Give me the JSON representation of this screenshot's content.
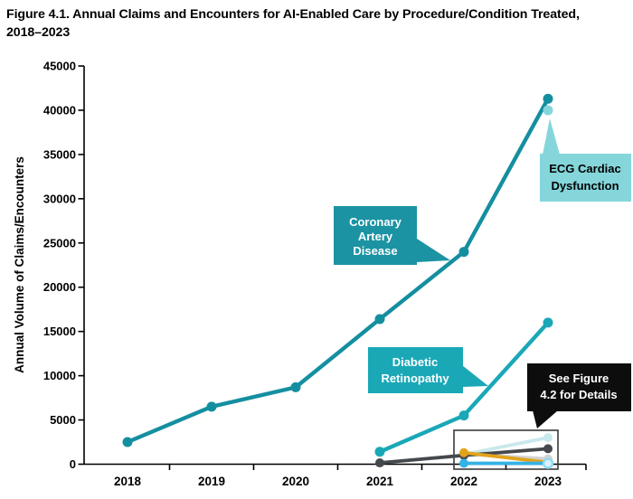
{
  "title": {
    "line1": "Figure 4.1. Annual Claims and Encounters for AI-Enabled Care by Procedure/Condition Treated,",
    "line2": "2018–2023"
  },
  "chart_data": {
    "type": "line",
    "title": "Figure 4.1. Annual Claims and Encounters for AI-Enabled Care by Procedure/Condition Treated, 2018–2023",
    "xlabel": "",
    "ylabel": "Annual Volume of Claims/Encounters",
    "x_ticks": [
      "2018",
      "2019",
      "2020",
      "2021",
      "2022",
      "2023"
    ],
    "ylim": [
      0,
      45000
    ],
    "ytick_interval": 5000,
    "ytick_labels": [
      "0",
      "5000",
      "10000",
      "15000",
      "20000",
      "25000",
      "30000",
      "35000",
      "40000",
      "45000"
    ],
    "grid": false,
    "legend_position": "none (series labeled via callout boxes)",
    "series": [
      {
        "name": "Coronary Artery Disease",
        "color": "#148fa0",
        "x": [
          2018,
          2019,
          2020,
          2021,
          2022,
          2023
        ],
        "values": [
          2500,
          6500,
          8700,
          16400,
          24000,
          41300
        ]
      },
      {
        "name": "ECG Cardiac Dysfunction",
        "color": "#85d6db",
        "x": [
          2023
        ],
        "values": [
          40000
        ]
      },
      {
        "name": "Diabetic Retinopathy",
        "color": "#1aa8b7",
        "x": [
          2021,
          2022,
          2023
        ],
        "values": [
          1400,
          5500,
          16000
        ]
      },
      {
        "name": "unlabeled light gray",
        "color": "#d3d3d3",
        "x": [
          2022,
          2023
        ],
        "values": [
          1150,
          600
        ]
      },
      {
        "name": "unlabeled pale cyan",
        "color": "#c9e9ec",
        "x": [
          2022,
          2023
        ],
        "values": [
          1100,
          3000
        ]
      },
      {
        "name": "unlabeled dark gray",
        "color": "#45484d",
        "x": [
          2021,
          2022,
          2023
        ],
        "values": [
          150,
          1000,
          1750
        ]
      },
      {
        "name": "unlabeled orange",
        "color": "#e2a31c",
        "x": [
          2022,
          2023
        ],
        "values": [
          1300,
          200
        ]
      },
      {
        "name": "unlabeled sky blue",
        "color": "#33b2e5",
        "x": [
          2022,
          2023
        ],
        "values": [
          100,
          100
        ],
        "last_marker": "open"
      }
    ],
    "callouts": [
      {
        "id": "coronary",
        "lines": [
          "Coronary",
          "Artery",
          "Disease"
        ],
        "fill": "#1b93a3",
        "text_color": "#ffffff",
        "points_to": {
          "x": 2022,
          "y": 24000
        }
      },
      {
        "id": "ecg",
        "lines": [
          "ECG Cardiac",
          "Dysfunction"
        ],
        "fill": "#85d6db",
        "text_color": "#000000",
        "points_to": {
          "x": 2023,
          "y": 40000
        }
      },
      {
        "id": "diabetic",
        "lines": [
          "Diabetic",
          "Retinopathy"
        ],
        "fill": "#1aa8b7",
        "text_color": "#ffffff",
        "points_to": {
          "x": 2022.3,
          "y": 8500
        }
      },
      {
        "id": "see-figure",
        "lines": [
          "See Figure",
          "4.2 for Details"
        ],
        "fill": "#0d0d0d",
        "text_color": "#ffffff",
        "points_to": {
          "x": 2022.9,
          "y": 3600
        }
      }
    ],
    "detail_box": {
      "x_range": [
        2022,
        2023
      ],
      "y_range": [
        0,
        3600
      ]
    }
  }
}
